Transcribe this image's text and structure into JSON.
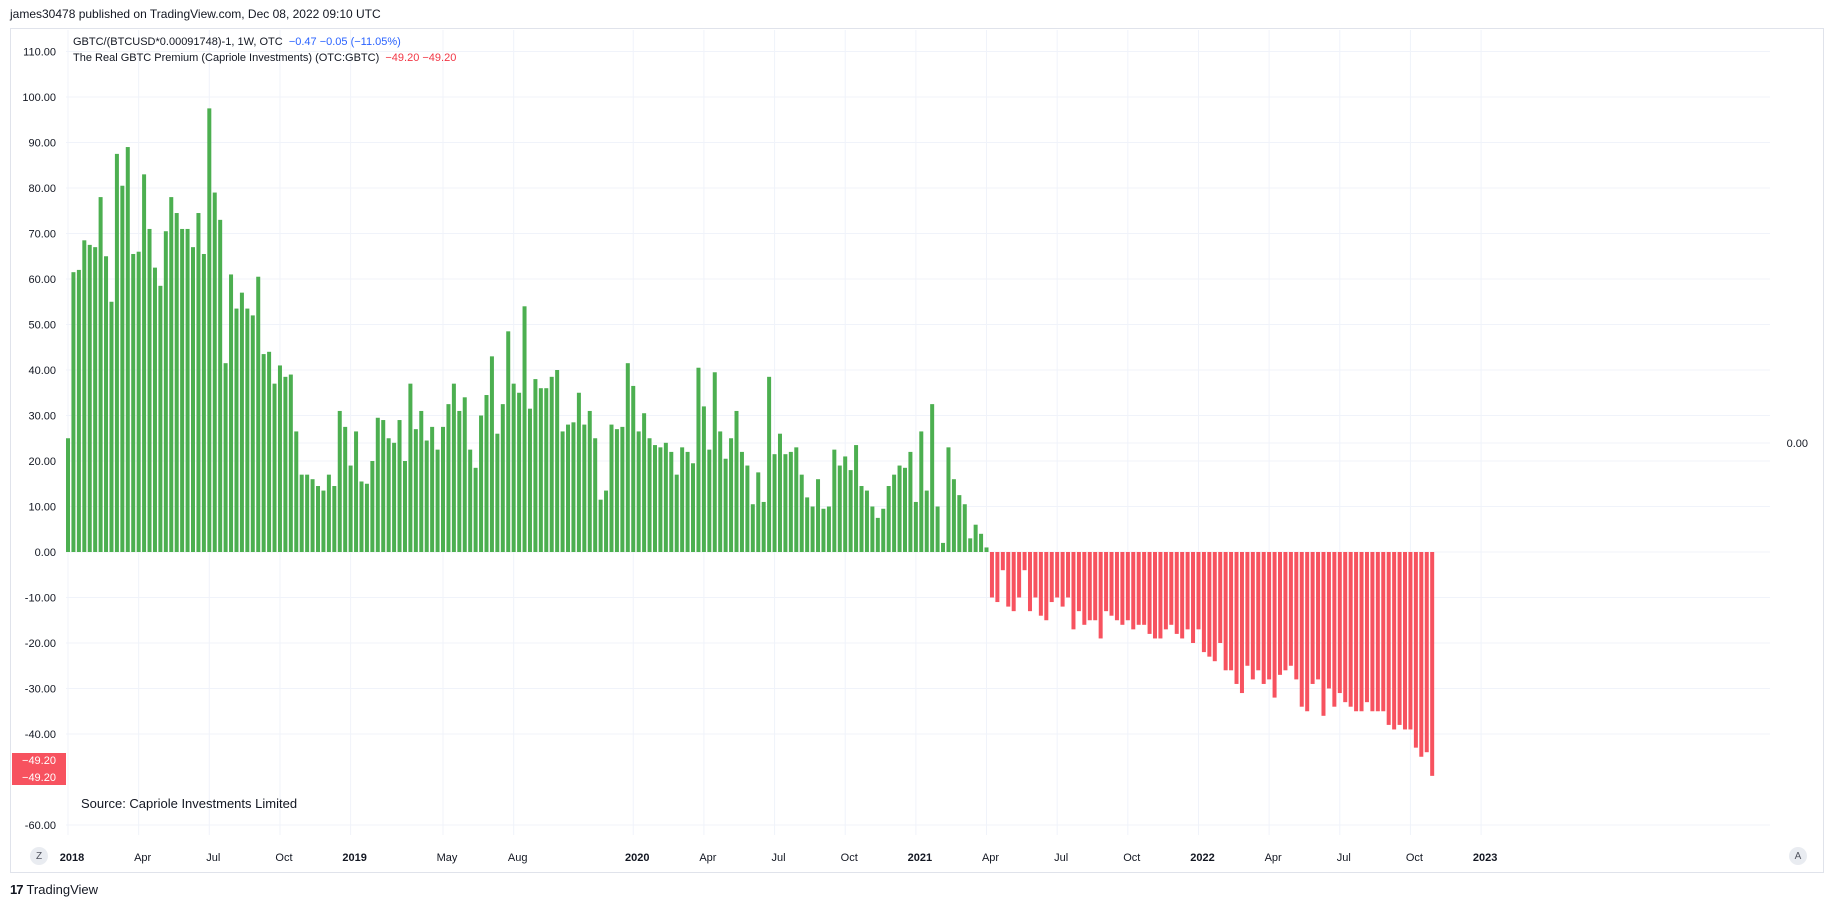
{
  "header": {
    "published": "james30478 published on TradingView.com, Dec 08, 2022 09:10 UTC"
  },
  "legend": {
    "line1_main": "GBTC/(BTCUSD*0.00091748)-1, 1W, OTC",
    "line1_values": "−0.47  −0.05 (−11.05%)",
    "line2_main": "The Real GBTC Premium (Capriole Investments) (OTC:GBTC)",
    "line2_values": "−49.20  −49.20"
  },
  "source_text": "Source: Capriole Investments Limited",
  "right_axis_label": "0.00",
  "last_value_labels": [
    "−49.20",
    "−49.20"
  ],
  "buttons": {
    "zoom": "Z",
    "auto": "A"
  },
  "footer": {
    "logo": "17",
    "brand": "TradingView"
  },
  "colors": {
    "positive": "#4caf50",
    "negative": "#f7525f",
    "grid": "#f0f3fa",
    "axis_text": "#131722"
  },
  "chart_data": {
    "type": "bar",
    "title": "",
    "xlabel": "",
    "ylabel": "",
    "ylim": [
      -64,
      112
    ],
    "yticks": [
      110,
      100,
      90,
      80,
      70,
      60,
      50,
      40,
      30,
      20,
      10,
      0,
      -10,
      -20,
      -30,
      -40,
      -60
    ],
    "ytick_labels": [
      "110.00",
      "100.00",
      "90.00",
      "80.00",
      "70.00",
      "60.00",
      "50.00",
      "40.00",
      "30.00",
      "20.00",
      "10.00",
      "0.00",
      "-10.00",
      "-20.00",
      "-30.00",
      "-40.00",
      "-60.00"
    ],
    "xticks": [
      {
        "label": "2018",
        "index": 0,
        "bold": true
      },
      {
        "label": "Apr",
        "index": 13,
        "bold": false
      },
      {
        "label": "Jul",
        "index": 26,
        "bold": false
      },
      {
        "label": "Oct",
        "index": 39,
        "bold": false
      },
      {
        "label": "2019",
        "index": 52,
        "bold": true
      },
      {
        "label": "May",
        "index": 69,
        "bold": false
      },
      {
        "label": "Aug",
        "index": 82,
        "bold": false
      },
      {
        "label": "2020",
        "index": 104,
        "bold": true
      },
      {
        "label": "Apr",
        "index": 117,
        "bold": false
      },
      {
        "label": "Jul",
        "index": 130,
        "bold": false
      },
      {
        "label": "Oct",
        "index": 143,
        "bold": false
      },
      {
        "label": "2021",
        "index": 156,
        "bold": true
      },
      {
        "label": "Apr",
        "index": 169,
        "bold": false
      },
      {
        "label": "Jul",
        "index": 182,
        "bold": false
      },
      {
        "label": "Oct",
        "index": 195,
        "bold": false
      },
      {
        "label": "2022",
        "index": 208,
        "bold": true
      },
      {
        "label": "Apr",
        "index": 221,
        "bold": false
      },
      {
        "label": "Jul",
        "index": 234,
        "bold": false
      },
      {
        "label": "Oct",
        "index": 247,
        "bold": false
      },
      {
        "label": "2023",
        "index": 260,
        "bold": true
      }
    ],
    "series": [
      {
        "values": [
          25,
          61.5,
          62,
          68.5,
          67.5,
          67,
          78,
          65,
          55,
          87.5,
          80.5,
          89,
          65.5,
          66,
          83,
          71,
          62.5,
          58.5,
          70.5,
          78,
          74.5,
          71,
          71,
          67,
          74.5,
          65.5,
          97.5,
          79,
          73,
          41.5,
          61,
          53.5,
          57,
          53.5,
          52,
          60.5,
          43.5,
          44,
          37,
          41,
          38.5,
          39,
          26.5,
          17,
          17,
          16,
          14.5,
          13.5,
          17,
          14.5,
          31,
          27.5,
          19,
          26.5,
          15.5,
          15,
          20,
          29.5,
          29,
          25,
          24,
          29,
          20,
          37,
          27,
          31,
          24.5,
          27.5,
          22.5,
          27.5,
          32.5,
          37,
          31,
          34,
          22.5,
          18.5,
          30,
          34.5,
          43,
          26,
          32.5,
          48.5,
          37,
          35,
          54,
          31.5,
          38,
          36,
          36,
          38.5,
          40,
          26.5,
          28,
          28.5,
          35,
          28,
          31,
          25,
          11.5,
          13.5,
          28,
          27,
          27.5,
          41.5,
          36.5,
          26.5,
          30.5,
          25,
          23.5,
          23,
          24,
          22,
          17,
          23,
          22,
          19.5,
          40.5,
          32,
          22.5,
          39.5,
          26.5,
          20.5,
          25,
          31,
          22,
          19,
          10.5,
          17.5,
          11,
          38.5,
          21.5,
          26,
          21.5,
          22,
          23,
          17,
          12,
          10,
          16,
          9.5,
          10,
          22.5,
          19,
          21,
          18,
          23.5,
          14.5,
          13.5,
          10,
          7.5,
          9.5,
          14.5,
          17,
          19,
          18.5,
          22,
          11,
          26.5,
          13.5,
          32.5,
          10,
          2,
          23,
          16,
          12.5,
          10.5,
          3,
          6,
          4,
          1,
          -10,
          -11,
          -4,
          -12,
          -13,
          -10,
          -4,
          -13,
          -10,
          -14,
          -15,
          -11,
          -10,
          -12,
          -10,
          -17,
          -13,
          -16,
          -15,
          -15,
          -19,
          -13,
          -14,
          -15,
          -16,
          -15,
          -17,
          -16,
          -16,
          -18,
          -19,
          -19,
          -17,
          -16,
          -18,
          -19,
          -17,
          -20,
          -17,
          -22,
          -23,
          -24,
          -20,
          -26,
          -26,
          -29,
          -31,
          -25,
          -28,
          -26,
          -29,
          -28,
          -32,
          -27,
          -26,
          -25,
          -28,
          -34,
          -35,
          -29,
          -28,
          -36,
          -30,
          -34,
          -31,
          -33,
          -34,
          -35,
          -35,
          -33,
          -35,
          -35,
          -35,
          -38,
          -39,
          -38,
          -39,
          -39,
          -43,
          -45,
          -44,
          -49.2
        ]
      }
    ],
    "grid": true,
    "legend_position": "top-left"
  }
}
